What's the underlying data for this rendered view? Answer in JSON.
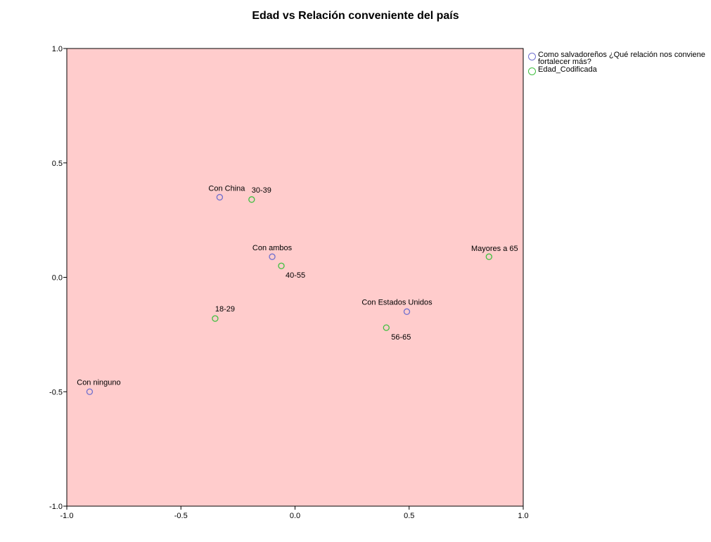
{
  "chart_data": {
    "type": "scatter",
    "title": "Edad vs Relación conveniente del país",
    "xlabel": "",
    "ylabel": "",
    "xlim": [
      -1.0,
      1.0
    ],
    "ylim": [
      -1.0,
      1.0
    ],
    "x_ticks": [
      "-1.0",
      "-0.5",
      "0.0",
      "0.5",
      "1.0"
    ],
    "y_ticks": [
      "-1.0",
      "-0.5",
      "0.0",
      "0.5",
      "1.0"
    ],
    "grid": false,
    "legend_position": "right",
    "plot_background": "#ffcccc",
    "series": [
      {
        "name": "Como salvadoreños ¿Qué relación nos conviene fortalecer más?",
        "color": "#6f6fcf",
        "points": [
          {
            "label": "Con China",
            "x": -0.33,
            "y": 0.35
          },
          {
            "label": "Con ambos",
            "x": -0.1,
            "y": 0.09
          },
          {
            "label": "Con Estados Unidos",
            "x": 0.49,
            "y": -0.15
          },
          {
            "label": "Con ninguno",
            "x": -0.9,
            "y": -0.5
          }
        ]
      },
      {
        "name": "Edad_Codificada",
        "color": "#3fbf3f",
        "points": [
          {
            "label": "30-39",
            "x": -0.19,
            "y": 0.34
          },
          {
            "label": "40-55",
            "x": -0.06,
            "y": 0.05
          },
          {
            "label": "18-29",
            "x": -0.35,
            "y": -0.18
          },
          {
            "label": "56-65",
            "x": 0.4,
            "y": -0.22
          },
          {
            "label": "Mayores a 65",
            "x": 0.85,
            "y": 0.09
          }
        ]
      }
    ]
  }
}
